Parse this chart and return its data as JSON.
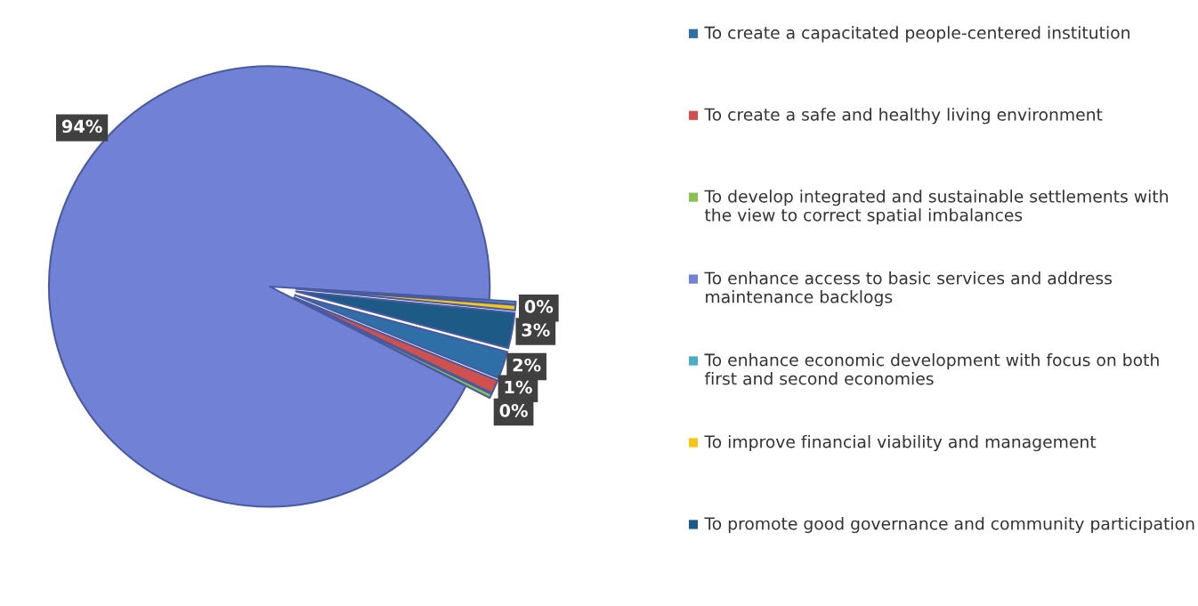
{
  "chart_data": {
    "type": "pie",
    "categories": [
      "To create a capacitated people-centered institution",
      "To create a safe and healthy living environment",
      "To develop integrated and sustainable settlements with the view to correct spatial imbalances",
      "To enhance access to basic services and address maintenance backlogs",
      "To enhance economic development with focus on both first and second economies",
      "To improve financial viability and management",
      "To promote good governance and community participation"
    ],
    "values": [
      2,
      1,
      0.3,
      93.5,
      0.2,
      0.4,
      2.6
    ],
    "value_labels": [
      "2%",
      "1%",
      "0%",
      "94%",
      null,
      "0%",
      "3%"
    ],
    "colors": [
      "#2f6fa8",
      "#d0504d",
      "#8cc152",
      "#7182d6",
      "#4bacc6",
      "#f5c518",
      "#1d5a86"
    ],
    "legend": "right"
  }
}
